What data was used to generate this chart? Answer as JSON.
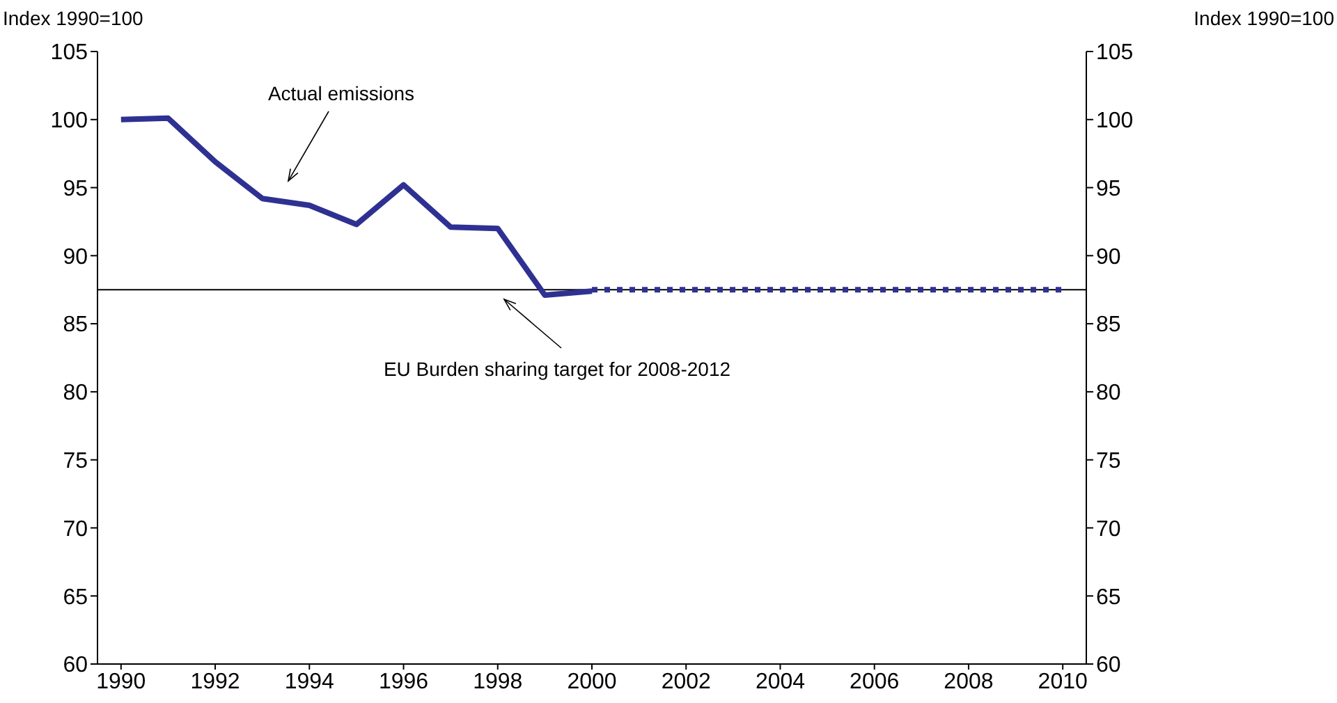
{
  "chart_data": {
    "type": "line",
    "ylabel": "Index 1990=100",
    "y2label": "Index 1990=100",
    "x": [
      1990,
      1991,
      1992,
      1993,
      1994,
      1995,
      1996,
      1997,
      1998,
      1999,
      2000,
      2001,
      2002,
      2003,
      2004,
      2005,
      2006,
      2007,
      2008,
      2009,
      2010
    ],
    "series": [
      {
        "color": "#2e3192",
        "values": [
          100.0,
          100.1,
          96.9,
          94.2,
          93.7,
          92.3,
          95.2,
          92.1,
          92.0,
          87.1,
          87.4,
          null,
          null,
          null,
          null,
          null,
          null,
          null,
          null,
          null,
          null
        ],
        "line_style": "solid"
      },
      {
        "color": "#2e3192",
        "values": [
          null,
          null,
          null,
          null,
          null,
          null,
          null,
          null,
          null,
          null,
          87.5,
          87.5,
          87.5,
          87.5,
          87.5,
          87.5,
          87.5,
          87.5,
          87.5,
          87.5,
          87.5
        ],
        "line_style": "dotted"
      }
    ],
    "xlim": [
      1989.5,
      2010.5
    ],
    "xticks": [
      1990,
      1992,
      1994,
      1996,
      1998,
      2000,
      2002,
      2004,
      2006,
      2008,
      2010
    ],
    "ylim": [
      60,
      105
    ],
    "yticks": [
      60,
      65,
      70,
      75,
      80,
      85,
      90,
      95,
      100,
      105
    ],
    "y2lim": [
      60,
      105
    ],
    "y2ticks": [
      60,
      65,
      70,
      75,
      80,
      85,
      90,
      95,
      100,
      105
    ],
    "ref_lines": [
      {
        "axis": "y",
        "value": 87.5,
        "color": "#000000"
      }
    ],
    "annotations": [
      "Actual emissions",
      "EU Burden sharing target for 2008-2012"
    ],
    "grid": false,
    "legend": false,
    "marker": "none"
  }
}
